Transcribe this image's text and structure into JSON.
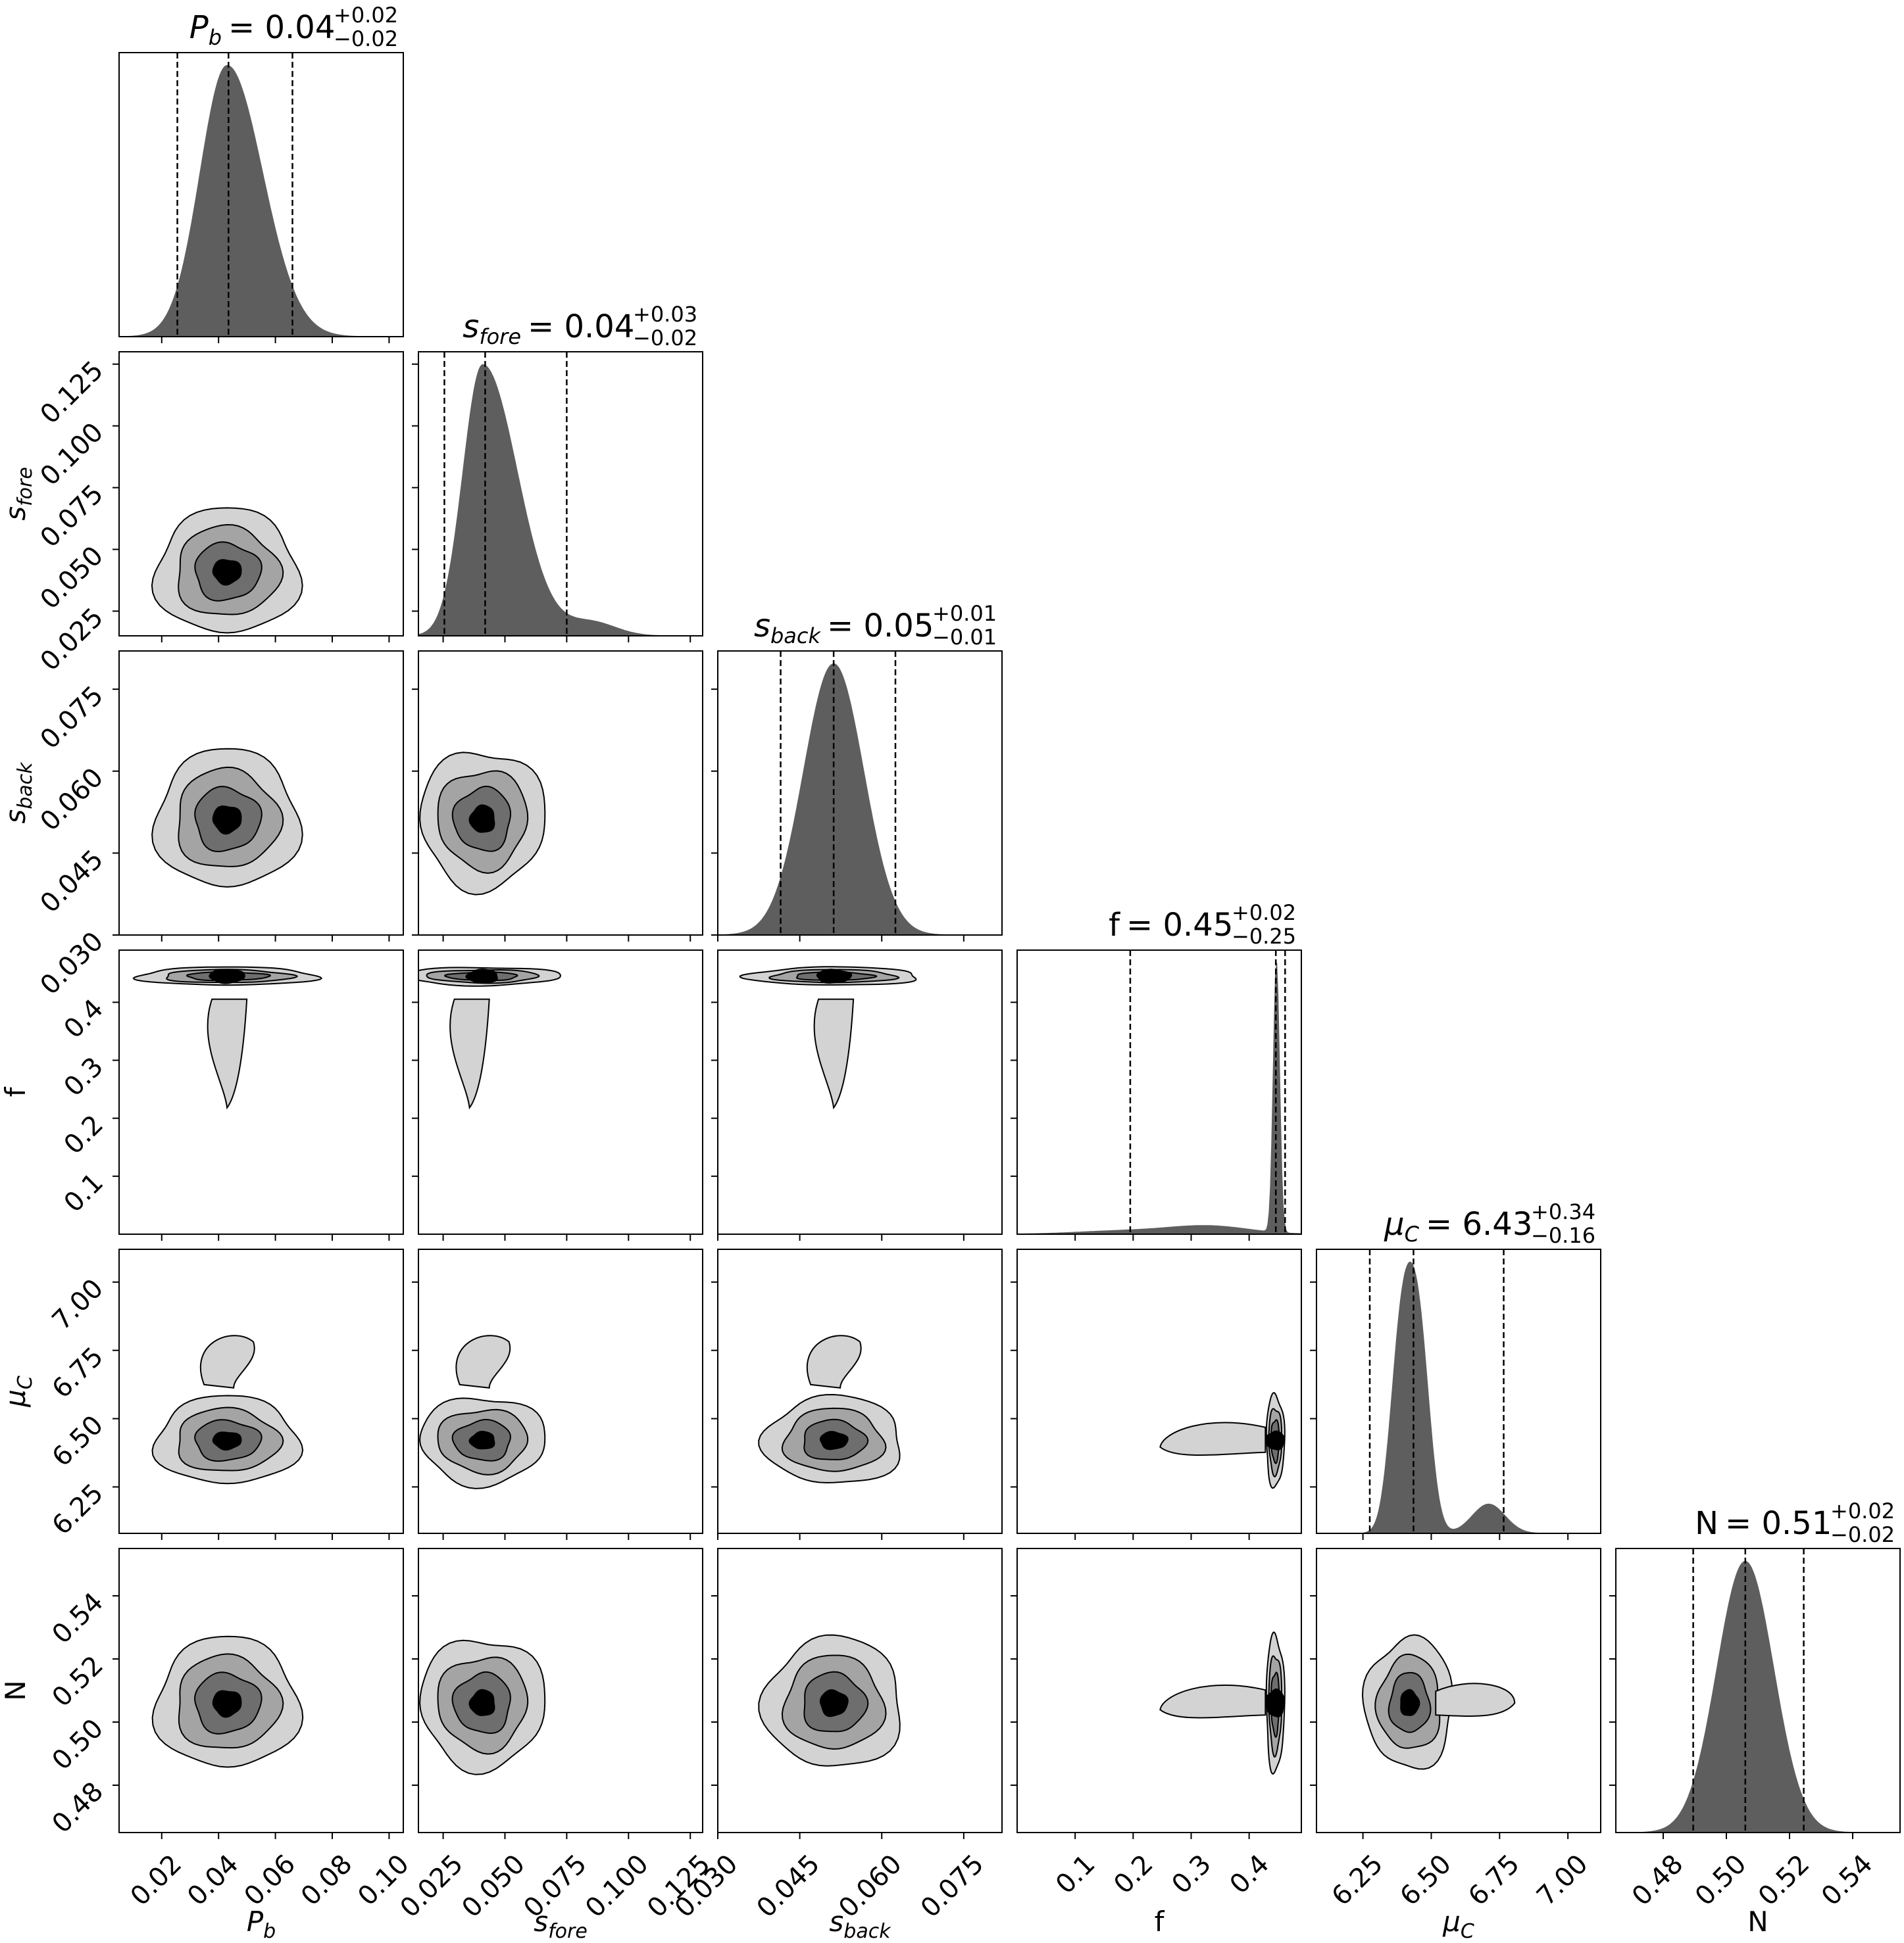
{
  "chart_data": {
    "type": "corner",
    "colors": {
      "hist_fill": "#5e5e5e",
      "contour_1": "#d3d3d3",
      "contour_2": "#a4a4a4",
      "contour_3": "#6e6e6e",
      "contour_4": "#000000",
      "line": "#000000"
    },
    "parameters": [
      {
        "id": "Pb",
        "label_base": "P",
        "label_sub": "b",
        "title_value": "0.04",
        "title_plus": "+0.02",
        "title_minus": "−0.02",
        "range": [
          0.005,
          0.105
        ],
        "ticks": [
          0.02,
          0.04,
          0.06,
          0.08,
          0.1
        ],
        "tick_labels": [
          "0.02",
          "0.04",
          "0.06",
          "0.08",
          "0.10"
        ],
        "median": 0.0435,
        "q16": 0.0255,
        "q84": 0.066,
        "sigma": 0.011,
        "mode": 0.043,
        "mode2": null
      },
      {
        "id": "sfore",
        "label_base": "s",
        "label_sub": "fore",
        "title_value": "0.04",
        "title_plus": "+0.03",
        "title_minus": "−0.02",
        "range": [
          0.015,
          0.13
        ],
        "ticks": [
          0.025,
          0.05,
          0.075,
          0.1,
          0.125
        ],
        "tick_labels": [
          "0.025",
          "0.050",
          "0.075",
          "0.100",
          "0.125"
        ],
        "median": 0.042,
        "q16": 0.0255,
        "q84": 0.075,
        "sigma": 0.011,
        "mode": 0.041,
        "mode2": null
      },
      {
        "id": "sback",
        "label_base": "s",
        "label_sub": "back",
        "title_value": "0.05",
        "title_plus": "+0.01",
        "title_minus": "−0.01",
        "range": [
          0.03,
          0.082
        ],
        "ticks": [
          0.03,
          0.045,
          0.06,
          0.075
        ],
        "tick_labels": [
          "0.030",
          "0.045",
          "0.060",
          "0.075"
        ],
        "median": 0.0512,
        "q16": 0.0415,
        "q84": 0.0625,
        "sigma": 0.0055,
        "mode": 0.0512,
        "mode2": null
      },
      {
        "id": "f",
        "label_base": "f",
        "label_sub": "",
        "title_value": "0.45",
        "title_plus": "+0.02",
        "title_minus": "−0.25",
        "range": [
          0.0,
          0.49
        ],
        "ticks": [
          0.1,
          0.2,
          0.3,
          0.4
        ],
        "tick_labels": [
          "0.1",
          "0.2",
          "0.3",
          "0.4"
        ],
        "median": 0.446,
        "q16": 0.195,
        "q84": 0.462,
        "sigma": 0.006,
        "mode": 0.445,
        "mode2": null
      },
      {
        "id": "muC",
        "label_base": "μ",
        "label_sub": "C",
        "title_value": "6.43",
        "title_plus": "+0.34",
        "title_minus": "−0.16",
        "range": [
          6.08,
          7.12
        ],
        "ticks": [
          6.25,
          6.5,
          6.75,
          7.0
        ],
        "tick_labels": [
          "6.25",
          "6.50",
          "6.75",
          "7.00"
        ],
        "median": 6.435,
        "q16": 6.275,
        "q84": 6.765,
        "sigma": 0.07,
        "mode": 6.42,
        "mode2": 6.7
      },
      {
        "id": "N",
        "label_base": "N",
        "label_sub": "",
        "title_value": "0.51",
        "title_plus": "+0.02",
        "title_minus": "−0.02",
        "range": [
          0.465,
          0.555
        ],
        "ticks": [
          0.48,
          0.5,
          0.52,
          0.54
        ],
        "tick_labels": [
          "0.48",
          "0.50",
          "0.52",
          "0.54"
        ],
        "median": 0.506,
        "q16": 0.4895,
        "q84": 0.5245,
        "sigma": 0.009,
        "mode": 0.506,
        "mode2": null
      }
    ],
    "y_tick_labels_left": [
      null,
      [
        "0.025",
        "0.050",
        "0.075",
        "0.100",
        "0.125"
      ],
      [
        "0.030",
        "0.045",
        "0.060",
        "0.075"
      ],
      [
        "0.1",
        "0.2",
        "0.3",
        "0.4"
      ],
      [
        "6.25",
        "6.50",
        "6.75",
        "7.00"
      ],
      [
        "0.48",
        "0.50",
        "0.52",
        "0.54"
      ]
    ],
    "contour_levels": 4,
    "grid": false,
    "legend": "none"
  }
}
